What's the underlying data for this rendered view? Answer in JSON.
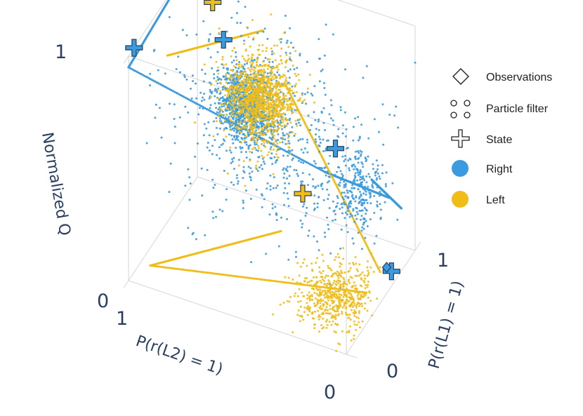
{
  "chart_data": {
    "type": "scatter",
    "subtype": "3d-scatter",
    "axes": {
      "x": {
        "label": "P(r(L1) = 1)",
        "range": [
          0,
          1
        ],
        "ticks": [
          "0",
          "1"
        ]
      },
      "y": {
        "label": "P(r(L2) = 1)",
        "range": [
          0,
          1
        ],
        "ticks": [
          "0",
          "1"
        ]
      },
      "z": {
        "label": "Normalized Q",
        "range": [
          0,
          1
        ],
        "ticks": [
          "0",
          "1"
        ]
      }
    },
    "grid": true,
    "legend": {
      "placement": "right",
      "items": [
        {
          "label": "Observations",
          "symbol": "diamond-open"
        },
        {
          "label": "Particle filter",
          "symbol": "circles-open"
        },
        {
          "label": "State",
          "symbol": "cross-open"
        },
        {
          "label": "Right",
          "symbol": "circle",
          "color": "#3b9bde"
        },
        {
          "label": "Left",
          "symbol": "circle",
          "color": "#f0bd18"
        }
      ]
    },
    "colors": {
      "Right": "#3b9bde",
      "Left": "#f0bd18"
    },
    "series": [
      {
        "name": "Right",
        "kind": "particle-filter",
        "color": "#3b9bde",
        "clusters": [
          {
            "center": [
              0.38,
              0.58,
              0.74
            ],
            "spread": [
              0.07,
              0.07,
              0.07
            ],
            "count": 1000
          },
          {
            "center": [
              0.5,
              0.5,
              0.6
            ],
            "spread": [
              0.22,
              0.22,
              0.2
            ],
            "count": 600
          },
          {
            "center": [
              0.62,
              0.15,
              0.4
            ],
            "spread": [
              0.06,
              0.06,
              0.09
            ],
            "count": 280
          }
        ],
        "boundary_edges": [
          [
            [
              0,
              1,
              0.95
            ],
            [
              1,
              1,
              1
            ]
          ],
          [
            [
              0,
              1,
              0.95
            ],
            [
              0,
              0.1,
              0.78
            ]
          ],
          [
            [
              0,
              0.1,
              0.78
            ],
            [
              0.78,
              0.05,
              0.32
            ]
          ],
          [
            [
              0.8,
              0,
              0.28
            ],
            [
              1,
              0.2,
              0.25
            ]
          ]
        ]
      },
      {
        "name": "Left",
        "kind": "particle-filter",
        "color": "#f0bd18",
        "clusters": [
          {
            "center": [
              0.5,
              0.55,
              0.72
            ],
            "spread": [
              0.07,
              0.07,
              0.07
            ],
            "count": 800
          },
          {
            "center": [
              0.72,
              0.65,
              0.6
            ],
            "spread": [
              0.12,
              0.08,
              0.12
            ],
            "count": 400
          },
          {
            "center": [
              0.22,
              0.12,
              0.12
            ],
            "spread": [
              0.1,
              0.08,
              0.06
            ],
            "count": 550
          }
        ],
        "boundary_edges": [
          [
            [
              0.25,
              0.9,
              0.92
            ],
            [
              1,
              0.7,
              0.75
            ]
          ],
          [
            [
              0,
              0.9,
              0.1
            ],
            [
              0.45,
              0.05,
              0.05
            ]
          ],
          [
            [
              0,
              0.9,
              0.1
            ],
            [
              0,
              0.3,
              0.45
            ]
          ],
          [
            [
              0.65,
              0.05,
              0.05
            ],
            [
              1,
              0.6,
              0.55
            ]
          ]
        ]
      }
    ],
    "state_markers": [
      {
        "series": "Right",
        "point": [
          0.08,
          1,
          1
        ]
      },
      {
        "series": "Right",
        "point": [
          0,
          0.05,
          0.9
        ]
      },
      {
        "series": "Right",
        "point": [
          1,
          0.88,
          0.65
        ]
      },
      {
        "series": "Right",
        "point": [
          0.72,
          0.02,
          0.03
        ]
      },
      {
        "series": "Left",
        "point": [
          0,
          0.2,
          0.65
        ]
      },
      {
        "series": "Left",
        "point": [
          1,
          0.93,
          0.8
        ]
      }
    ],
    "observation_markers": [
      {
        "series": "Right",
        "point": [
          0.65,
          0.02,
          0.08
        ]
      }
    ]
  }
}
